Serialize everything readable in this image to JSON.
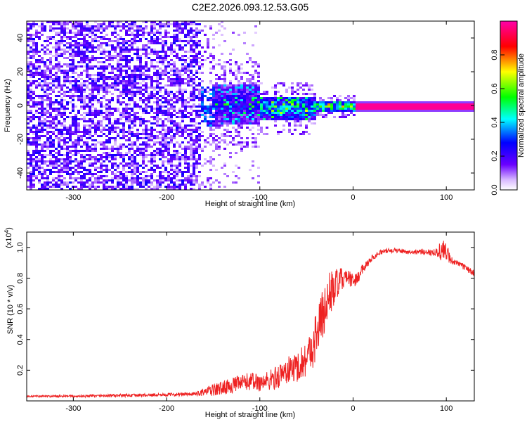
{
  "chart_data": [
    {
      "type": "heatmap",
      "title": "C2E2.2026.093.12.53.G05",
      "xlabel": "Height of straight line (km)",
      "ylabel": "Frequency (Hz)",
      "xlim": [
        -350,
        130
      ],
      "ylim": [
        -50,
        50
      ],
      "xticks": [
        -300,
        -200,
        -100,
        0,
        100
      ],
      "yticks": [
        -40,
        -20,
        0,
        20,
        40
      ],
      "colorbar": {
        "label": "Normalized spectral amplitude",
        "range": [
          0,
          1
        ],
        "ticks": [
          "0.0",
          "0.2",
          "0.4",
          "0.6",
          "0.8"
        ],
        "stops": [
          "#ffffff",
          "#6a00ff",
          "#0000ff",
          "#00ffff",
          "#00ff00",
          "#ffff00",
          "#ff0000",
          "#ff00ff"
        ]
      },
      "regions": [
        {
          "x": [
            -350,
            -165
          ],
          "freq_center": 0,
          "freq_halfwidth": 50,
          "amplitude": 0.15,
          "description_level": "noise"
        },
        {
          "x": [
            -165,
            -100
          ],
          "freq_center": 1,
          "freq_halfwidth": 12,
          "amplitude": 0.35
        },
        {
          "x": [
            -100,
            -40
          ],
          "freq_center": -1,
          "freq_halfwidth": 7,
          "amplitude": 0.55
        },
        {
          "x": [
            -40,
            0
          ],
          "freq_center": 0,
          "freq_halfwidth": 3,
          "amplitude": 0.7
        },
        {
          "x": [
            0,
            130
          ],
          "freq_center": 0,
          "freq_halfwidth": 1,
          "amplitude": 0.98
        }
      ]
    },
    {
      "type": "line",
      "xlabel": "Height of straight line (km)",
      "ylabel": "SNR (10 * v/v)",
      "y_multiplier": "(x10",
      "y_multiplier_exp": "4",
      "y_multiplier_close": ")",
      "xlim": [
        -350,
        130
      ],
      "ylim": [
        0,
        1.1
      ],
      "xticks": [
        -300,
        -200,
        -100,
        0,
        100
      ],
      "yticks": [
        "0.2",
        "0.4",
        "0.6",
        "0.8",
        "1.0"
      ],
      "color": "#ee2222",
      "series": [
        {
          "name": "SNR",
          "x": [
            -350,
            -300,
            -250,
            -200,
            -170,
            -150,
            -130,
            -110,
            -100,
            -90,
            -80,
            -70,
            -60,
            -50,
            -45,
            -40,
            -35,
            -30,
            -25,
            -20,
            -15,
            -10,
            -5,
            0,
            5,
            10,
            20,
            30,
            40,
            50,
            60,
            70,
            80,
            90,
            95,
            100,
            105,
            110,
            120,
            130
          ],
          "values": [
            0.03,
            0.03,
            0.035,
            0.04,
            0.045,
            0.07,
            0.1,
            0.13,
            0.12,
            0.13,
            0.16,
            0.2,
            0.22,
            0.28,
            0.33,
            0.42,
            0.52,
            0.6,
            0.7,
            0.74,
            0.77,
            0.8,
            0.8,
            0.78,
            0.8,
            0.86,
            0.93,
            0.97,
            0.98,
            0.98,
            0.97,
            0.97,
            0.97,
            0.97,
            0.98,
            0.97,
            0.92,
            0.9,
            0.87,
            0.83
          ],
          "noise": [
            0.005,
            0.008,
            0.01,
            0.01,
            0.012,
            0.04,
            0.05,
            0.06,
            0.06,
            0.07,
            0.08,
            0.09,
            0.1,
            0.12,
            0.14,
            0.16,
            0.18,
            0.16,
            0.15,
            0.12,
            0.1,
            0.06,
            0.05,
            0.05,
            0.04,
            0.03,
            0.02,
            0.015,
            0.015,
            0.015,
            0.015,
            0.015,
            0.02,
            0.03,
            0.08,
            0.06,
            0.03,
            0.02,
            0.02,
            0.02
          ]
        }
      ]
    }
  ]
}
